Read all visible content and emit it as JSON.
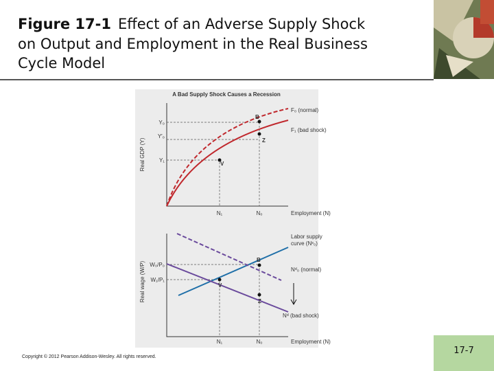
{
  "header": {
    "label": "Figure 17-1",
    "title_lines": [
      "Effect of an Adverse Supply Shock",
      "on Output and Employment in the Real Business",
      "Cycle Model"
    ]
  },
  "figure": {
    "title": "A Bad Supply Shock Causes a Recession",
    "top_panel": {
      "y_axis_label": "Real GDP (Y)",
      "x_axis_label": "Employment (N)",
      "y_labels": [
        "Y₀",
        "Y′₀",
        "Y₁"
      ],
      "x_labels": [
        "N₁",
        "N₀"
      ],
      "curve_labels": [
        "F₀ (normal)",
        "F₁ (bad shock)"
      ],
      "points": [
        "B",
        "Z",
        "V"
      ]
    },
    "bottom_panel": {
      "y_axis_label": "Real wage (W/P)",
      "x_axis_label": "Employment (N)",
      "y_labels": [
        "W₀/P₀",
        "W₁/P₁"
      ],
      "x_labels": [
        "N₁",
        "N₀"
      ],
      "curve_labels": [
        "Labor supply",
        "curve (Nˢ₀)",
        "Nᵈ₀ (normal)",
        "Nᵈ (bad shock)"
      ],
      "points": [
        "B",
        "V",
        "Z"
      ]
    }
  },
  "footer": {
    "copyright": "Copyright © 2012 Pearson Addison-Wesley. All rights reserved.",
    "page_number": "17-7"
  }
}
